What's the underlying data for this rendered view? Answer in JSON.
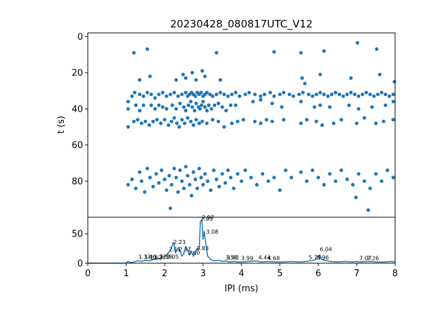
{
  "chart_data": [
    {
      "type": "scatter",
      "title": "20230428_080817UTC_V12",
      "xlabel": "",
      "ylabel": "t (s)",
      "xlim": [
        0,
        8
      ],
      "ylim": [
        100,
        -2
      ],
      "y_inverted": true,
      "yticks": [
        0,
        20,
        40,
        60,
        80
      ],
      "color": "#1f77b4",
      "grid": false,
      "points": [
        [
          1.2,
          9
        ],
        [
          1.55,
          7
        ],
        [
          3.35,
          9
        ],
        [
          4.85,
          8.5
        ],
        [
          5.55,
          9
        ],
        [
          6.15,
          8
        ],
        [
          7.02,
          3.5
        ],
        [
          7.52,
          7
        ],
        [
          2.15,
          95
        ],
        [
          7.3,
          96
        ],
        [
          6.98,
          89
        ],
        [
          1.35,
          24
        ],
        [
          1.62,
          22
        ],
        [
          2.3,
          24
        ],
        [
          2.48,
          21
        ],
        [
          2.55,
          23
        ],
        [
          2.72,
          20
        ],
        [
          2.82,
          24
        ],
        [
          2.98,
          19
        ],
        [
          3.05,
          22
        ],
        [
          3.45,
          24
        ],
        [
          5.58,
          23
        ],
        [
          5.65,
          26
        ],
        [
          6.05,
          21
        ],
        [
          6.85,
          23
        ],
        [
          7.6,
          21
        ],
        [
          7.98,
          25
        ],
        [
          1.05,
          36
        ],
        [
          1.15,
          33
        ],
        [
          1.22,
          31
        ],
        [
          1.35,
          32
        ],
        [
          1.45,
          33
        ],
        [
          1.55,
          31
        ],
        [
          1.65,
          32
        ],
        [
          1.75,
          34
        ],
        [
          1.85,
          32
        ],
        [
          1.95,
          31
        ],
        [
          2.05,
          33
        ],
        [
          2.15,
          32
        ],
        [
          2.25,
          31
        ],
        [
          2.35,
          33
        ],
        [
          2.45,
          32
        ],
        [
          2.55,
          31
        ],
        [
          2.6,
          33
        ],
        [
          2.65,
          32
        ],
        [
          2.7,
          31
        ],
        [
          2.75,
          32
        ],
        [
          2.8,
          33
        ],
        [
          2.85,
          31
        ],
        [
          2.9,
          32
        ],
        [
          2.95,
          31
        ],
        [
          3.0,
          33
        ],
        [
          3.05,
          32
        ],
        [
          3.1,
          31
        ],
        [
          3.18,
          32
        ],
        [
          3.25,
          33
        ],
        [
          3.35,
          32
        ],
        [
          3.45,
          31
        ],
        [
          3.55,
          32
        ],
        [
          3.65,
          33
        ],
        [
          3.75,
          32
        ],
        [
          3.85,
          31
        ],
        [
          3.95,
          33
        ],
        [
          4.1,
          32
        ],
        [
          4.2,
          31
        ],
        [
          4.35,
          32
        ],
        [
          4.5,
          33
        ],
        [
          4.6,
          32
        ],
        [
          4.75,
          31
        ],
        [
          4.85,
          33
        ],
        [
          5.0,
          32
        ],
        [
          5.1,
          31
        ],
        [
          5.25,
          32
        ],
        [
          5.35,
          33
        ],
        [
          5.5,
          32
        ],
        [
          5.6,
          31
        ],
        [
          5.75,
          32
        ],
        [
          5.85,
          33
        ],
        [
          5.95,
          32
        ],
        [
          6.05,
          31
        ],
        [
          6.15,
          32
        ],
        [
          6.25,
          33
        ],
        [
          6.35,
          32
        ],
        [
          6.45,
          31
        ],
        [
          6.55,
          32
        ],
        [
          6.65,
          33
        ],
        [
          6.75,
          32
        ],
        [
          6.85,
          31
        ],
        [
          6.95,
          32
        ],
        [
          7.05,
          33
        ],
        [
          7.15,
          32
        ],
        [
          7.25,
          31
        ],
        [
          7.35,
          32
        ],
        [
          7.45,
          33
        ],
        [
          7.55,
          32
        ],
        [
          7.65,
          31
        ],
        [
          7.75,
          32
        ],
        [
          7.85,
          33
        ],
        [
          7.95,
          32
        ],
        [
          1.05,
          40
        ],
        [
          1.25,
          38
        ],
        [
          1.35,
          41
        ],
        [
          1.45,
          38
        ],
        [
          1.65,
          38
        ],
        [
          1.75,
          40
        ],
        [
          1.85,
          38
        ],
        [
          1.95,
          39
        ],
        [
          2.05,
          40
        ],
        [
          2.2,
          38
        ],
        [
          2.3,
          40
        ],
        [
          2.4,
          37
        ],
        [
          2.5,
          39
        ],
        [
          2.55,
          41
        ],
        [
          2.62,
          38
        ],
        [
          2.68,
          36
        ],
        [
          2.72,
          39
        ],
        [
          2.78,
          41
        ],
        [
          2.82,
          37
        ],
        [
          2.88,
          39
        ],
        [
          2.92,
          40
        ],
        [
          2.96,
          38
        ],
        [
          3.0,
          36
        ],
        [
          3.05,
          39
        ],
        [
          3.1,
          41
        ],
        [
          3.15,
          38
        ],
        [
          3.22,
          40
        ],
        [
          3.3,
          38
        ],
        [
          3.4,
          37
        ],
        [
          3.5,
          39
        ],
        [
          3.6,
          41
        ],
        [
          3.72,
          38
        ],
        [
          3.85,
          38
        ],
        [
          4.3,
          36
        ],
        [
          4.5,
          35
        ],
        [
          4.8,
          37
        ],
        [
          5.05,
          39
        ],
        [
          5.55,
          36
        ],
        [
          5.9,
          39
        ],
        [
          6.05,
          38
        ],
        [
          6.3,
          39
        ],
        [
          6.8,
          38
        ],
        [
          7.05,
          40
        ],
        [
          7.4,
          39
        ],
        [
          7.75,
          38
        ],
        [
          7.95,
          36
        ],
        [
          1.05,
          50
        ],
        [
          1.2,
          47
        ],
        [
          1.3,
          46
        ],
        [
          1.4,
          48
        ],
        [
          1.5,
          47
        ],
        [
          1.6,
          49
        ],
        [
          1.7,
          47
        ],
        [
          1.8,
          46
        ],
        [
          1.9,
          48
        ],
        [
          2.0,
          46
        ],
        [
          2.1,
          49
        ],
        [
          2.18,
          47
        ],
        [
          2.25,
          45
        ],
        [
          2.32,
          48
        ],
        [
          2.38,
          50
        ],
        [
          2.45,
          46
        ],
        [
          2.52,
          48
        ],
        [
          2.6,
          45
        ],
        [
          2.68,
          47
        ],
        [
          2.75,
          49
        ],
        [
          2.82,
          46
        ],
        [
          2.9,
          48
        ],
        [
          2.98,
          47
        ],
        [
          3.1,
          48
        ],
        [
          3.25,
          46
        ],
        [
          3.4,
          47
        ],
        [
          3.55,
          50
        ],
        [
          3.75,
          48
        ],
        [
          3.9,
          47
        ],
        [
          4.05,
          46
        ],
        [
          4.35,
          47
        ],
        [
          4.5,
          48
        ],
        [
          4.65,
          46
        ],
        [
          4.8,
          47
        ],
        [
          5.1,
          46
        ],
        [
          5.55,
          48
        ],
        [
          5.7,
          46
        ],
        [
          5.95,
          47
        ],
        [
          6.1,
          49
        ],
        [
          6.4,
          48
        ],
        [
          6.6,
          46
        ],
        [
          7.0,
          48
        ],
        [
          7.2,
          45
        ],
        [
          7.5,
          48
        ],
        [
          7.7,
          47
        ],
        [
          7.95,
          46
        ],
        [
          1.05,
          82
        ],
        [
          1.15,
          79
        ],
        [
          1.25,
          84
        ],
        [
          1.35,
          75
        ],
        [
          1.4,
          80
        ],
        [
          1.48,
          86
        ],
        [
          1.55,
          73
        ],
        [
          1.62,
          78
        ],
        [
          1.7,
          83
        ],
        [
          1.78,
          76
        ],
        [
          1.85,
          81
        ],
        [
          1.92,
          74
        ],
        [
          2.0,
          79
        ],
        [
          2.05,
          85
        ],
        [
          2.12,
          77
        ],
        [
          2.18,
          82
        ],
        [
          2.25,
          73
        ],
        [
          2.3,
          78
        ],
        [
          2.35,
          86
        ],
        [
          2.4,
          74
        ],
        [
          2.45,
          80
        ],
        [
          2.5,
          84
        ],
        [
          2.55,
          72
        ],
        [
          2.6,
          77
        ],
        [
          2.65,
          82
        ],
        [
          2.7,
          88
        ],
        [
          2.75,
          75
        ],
        [
          2.8,
          79
        ],
        [
          2.85,
          84
        ],
        [
          2.9,
          73
        ],
        [
          2.95,
          78
        ],
        [
          3.0,
          82
        ],
        [
          3.05,
          76
        ],
        [
          3.12,
          80
        ],
        [
          3.2,
          85
        ],
        [
          3.28,
          74
        ],
        [
          3.35,
          79
        ],
        [
          3.42,
          83
        ],
        [
          3.5,
          76
        ],
        [
          3.58,
          81
        ],
        [
          3.65,
          74
        ],
        [
          3.72,
          78
        ],
        [
          3.8,
          84
        ],
        [
          3.9,
          76
        ],
        [
          4.0,
          80
        ],
        [
          4.1,
          74
        ],
        [
          4.25,
          78
        ],
        [
          4.4,
          82
        ],
        [
          4.55,
          76
        ],
        [
          4.7,
          80
        ],
        [
          4.85,
          78
        ],
        [
          5.0,
          85
        ],
        [
          5.15,
          74
        ],
        [
          5.3,
          78
        ],
        [
          5.55,
          75
        ],
        [
          5.7,
          80
        ],
        [
          5.85,
          74
        ],
        [
          6.0,
          78
        ],
        [
          6.15,
          82
        ],
        [
          6.3,
          76
        ],
        [
          6.45,
          80
        ],
        [
          6.6,
          74
        ],
        [
          6.75,
          79
        ],
        [
          6.9,
          82
        ],
        [
          7.05,
          76
        ],
        [
          7.2,
          80
        ],
        [
          7.35,
          84
        ],
        [
          7.5,
          76
        ],
        [
          7.65,
          80
        ],
        [
          7.8,
          74
        ],
        [
          7.95,
          78
        ]
      ]
    },
    {
      "type": "line",
      "xlabel": "IPI (ms)",
      "ylabel": "",
      "xlim": [
        0,
        8
      ],
      "ylim": [
        0,
        78
      ],
      "xticks": [
        0,
        1,
        2,
        3,
        4,
        5,
        6,
        7,
        8
      ],
      "yticks": [
        0,
        50
      ],
      "color": "#1f77b4",
      "grid": false,
      "x": [
        0.0,
        0.8,
        1.0,
        1.05,
        1.1,
        1.2,
        1.3,
        1.4,
        1.5,
        1.6,
        1.7,
        1.8,
        1.9,
        2.0,
        2.05,
        2.1,
        2.15,
        2.2,
        2.23,
        2.28,
        2.35,
        2.4,
        2.45,
        2.5,
        2.55,
        2.6,
        2.65,
        2.7,
        2.75,
        2.8,
        2.85,
        2.9,
        2.93,
        2.97,
        3.0,
        3.03,
        3.08,
        3.12,
        3.2,
        3.3,
        3.4,
        3.5,
        3.6,
        3.7,
        3.8,
        3.9,
        4.0,
        4.2,
        4.4,
        4.5,
        4.7,
        4.9,
        5.1,
        5.3,
        5.5,
        5.7,
        5.8,
        5.9,
        5.96,
        6.0,
        6.04,
        6.1,
        6.3,
        6.5,
        6.7,
        6.9,
        7.0,
        7.1,
        7.3,
        7.5,
        7.7,
        7.9,
        8.0
      ],
      "values": [
        0,
        0,
        0.5,
        3,
        1,
        2,
        4,
        3,
        5,
        4,
        6,
        7,
        9,
        12,
        14,
        18,
        22,
        30,
        36,
        18,
        25,
        20,
        12,
        16,
        28,
        22,
        14,
        20,
        12,
        18,
        26,
        24,
        70,
        72,
        40,
        55,
        30,
        12,
        6,
        4,
        5,
        3,
        4,
        2,
        3,
        2,
        2,
        3,
        4,
        2,
        3,
        2,
        2,
        3,
        2,
        3,
        4,
        5,
        8,
        10,
        14,
        6,
        3,
        2,
        3,
        2,
        3,
        2,
        3,
        2,
        2,
        3,
        2
      ],
      "annotations": [
        {
          "x": 1.32,
          "y": 5,
          "label": "1.32"
        },
        {
          "x": 1.46,
          "y": 5,
          "label": "1.46"
        },
        {
          "x": 1.62,
          "y": 4,
          "label": "1.62"
        },
        {
          "x": 1.72,
          "y": 5,
          "label": "1.72"
        },
        {
          "x": 1.88,
          "y": 5,
          "label": "1.88"
        },
        {
          "x": 2.05,
          "y": 5,
          "label": "2.05"
        },
        {
          "x": 2.11,
          "y": 18,
          "label": "2.11"
        },
        {
          "x": 2.23,
          "y": 30,
          "label": "2.23"
        },
        {
          "x": 2.37,
          "y": 18,
          "label": "2.37"
        },
        {
          "x": 2.6,
          "y": 12,
          "label": "2.60"
        },
        {
          "x": 2.83,
          "y": 20,
          "label": "2.83"
        },
        {
          "x": 2.93,
          "y": 70,
          "label": "2.93"
        },
        {
          "x": 2.97,
          "y": 72,
          "label": "2.97"
        },
        {
          "x": 3.08,
          "y": 48,
          "label": "3.08"
        },
        {
          "x": 3.58,
          "y": 4,
          "label": "3.58"
        },
        {
          "x": 3.62,
          "y": 4,
          "label": "3.62"
        },
        {
          "x": 3.99,
          "y": 3,
          "label": "3.99"
        },
        {
          "x": 4.44,
          "y": 4,
          "label": "4.44"
        },
        {
          "x": 4.68,
          "y": 3,
          "label": "4.68"
        },
        {
          "x": 5.75,
          "y": 4,
          "label": "5.75"
        },
        {
          "x": 5.96,
          "y": 4,
          "label": "5.96"
        },
        {
          "x": 6.04,
          "y": 18,
          "label": "6.04"
        },
        {
          "x": 7.07,
          "y": 3,
          "label": "7.07"
        },
        {
          "x": 7.26,
          "y": 3,
          "label": "7.26"
        }
      ]
    }
  ]
}
